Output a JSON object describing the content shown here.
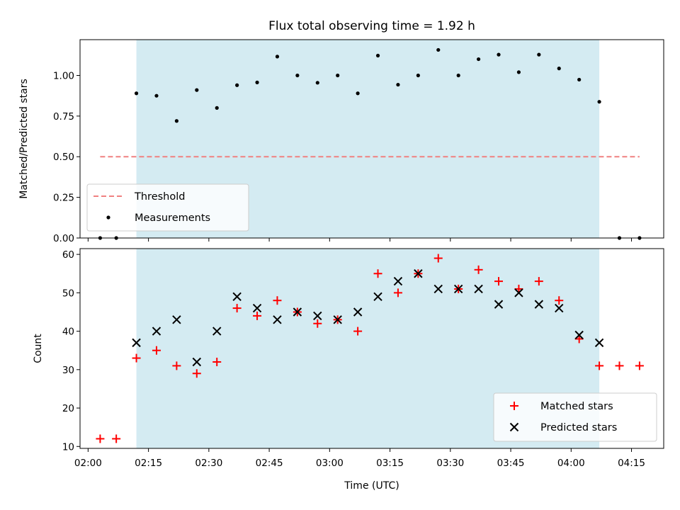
{
  "chart_data": [
    {
      "type": "scatter",
      "title": "Flux total observing time = 1.92 h",
      "xlabel": "",
      "ylabel": "Matched/Predicted stars",
      "ylim": [
        0,
        1.22
      ],
      "yticks": [
        "0.00",
        "0.25",
        "0.50",
        "0.75",
        "1.00"
      ],
      "ytick_values": [
        0,
        0.25,
        0.5,
        0.75,
        1.0
      ],
      "shaded_region": {
        "x": [
          "02:12",
          "04:07"
        ],
        "color": "#add8e6"
      },
      "legend": {
        "position": "lower-left",
        "entries": [
          "Threshold",
          "Measurements"
        ]
      },
      "series": [
        {
          "name": "Threshold",
          "style": "dashed-line",
          "color": "#f08080",
          "x": [
            "02:03",
            "04:17"
          ],
          "y": [
            0.5,
            0.5
          ]
        },
        {
          "name": "Measurements",
          "style": "dot",
          "color": "#000000",
          "x": [
            "02:03",
            "02:07",
            "02:12",
            "02:17",
            "02:22",
            "02:27",
            "02:32",
            "02:37",
            "02:42",
            "02:47",
            "02:52",
            "02:57",
            "03:02",
            "03:07",
            "03:12",
            "03:17",
            "03:22",
            "03:27",
            "03:32",
            "03:37",
            "03:42",
            "03:47",
            "03:52",
            "03:57",
            "04:02",
            "04:07",
            "04:12",
            "04:17"
          ],
          "y": [
            0,
            0,
            0.89,
            0.875,
            0.72,
            0.91,
            0.8,
            0.94,
            0.957,
            1.116,
            1.0,
            0.955,
            1.0,
            0.89,
            1.122,
            0.943,
            1.0,
            1.157,
            1.0,
            1.1,
            1.128,
            1.02,
            1.128,
            1.043,
            0.974,
            0.838,
            0,
            0
          ]
        }
      ]
    },
    {
      "type": "scatter",
      "title": "",
      "xlabel": "Time (UTC)",
      "ylabel": "Count",
      "ylim": [
        9.5,
        61.5
      ],
      "yticks": [
        "10",
        "20",
        "30",
        "40",
        "50",
        "60"
      ],
      "ytick_values": [
        10,
        20,
        30,
        40,
        50,
        60
      ],
      "xlim": [
        "01:58",
        "04:23"
      ],
      "xticks": [
        "02:00",
        "02:15",
        "02:30",
        "02:45",
        "03:00",
        "03:15",
        "03:30",
        "03:45",
        "04:00",
        "04:15"
      ],
      "shaded_region": {
        "x": [
          "02:12",
          "04:07"
        ],
        "color": "#add8e6"
      },
      "legend": {
        "position": "lower-right",
        "entries": [
          "Matched stars",
          "Predicted stars"
        ]
      },
      "series": [
        {
          "name": "Matched stars",
          "marker": "plus",
          "color": "#ff0000",
          "x": [
            "02:03",
            "02:07",
            "02:12",
            "02:17",
            "02:22",
            "02:27",
            "02:32",
            "02:37",
            "02:42",
            "02:47",
            "02:52",
            "02:57",
            "03:02",
            "03:07",
            "03:12",
            "03:17",
            "03:22",
            "03:27",
            "03:32",
            "03:37",
            "03:42",
            "03:47",
            "03:52",
            "03:57",
            "04:02",
            "04:07",
            "04:12",
            "04:17"
          ],
          "y": [
            12,
            12,
            33,
            35,
            31,
            29,
            32,
            46,
            44,
            48,
            45,
            42,
            43,
            40,
            55,
            50,
            55,
            59,
            51,
            56,
            53,
            51,
            53,
            48,
            38,
            31,
            31,
            31
          ]
        },
        {
          "name": "Predicted stars",
          "marker": "x",
          "color": "#000000",
          "x": [
            "02:12",
            "02:17",
            "02:22",
            "02:27",
            "02:32",
            "02:37",
            "02:42",
            "02:47",
            "02:52",
            "02:57",
            "03:02",
            "03:07",
            "03:12",
            "03:17",
            "03:22",
            "03:27",
            "03:32",
            "03:37",
            "03:42",
            "03:47",
            "03:52",
            "03:57",
            "04:02",
            "04:07"
          ],
          "y": [
            37,
            40,
            43,
            32,
            40,
            49,
            46,
            43,
            45,
            44,
            43,
            45,
            49,
            53,
            55,
            51,
            51,
            51,
            47,
            50,
            47,
            46,
            39,
            37
          ]
        }
      ]
    }
  ]
}
